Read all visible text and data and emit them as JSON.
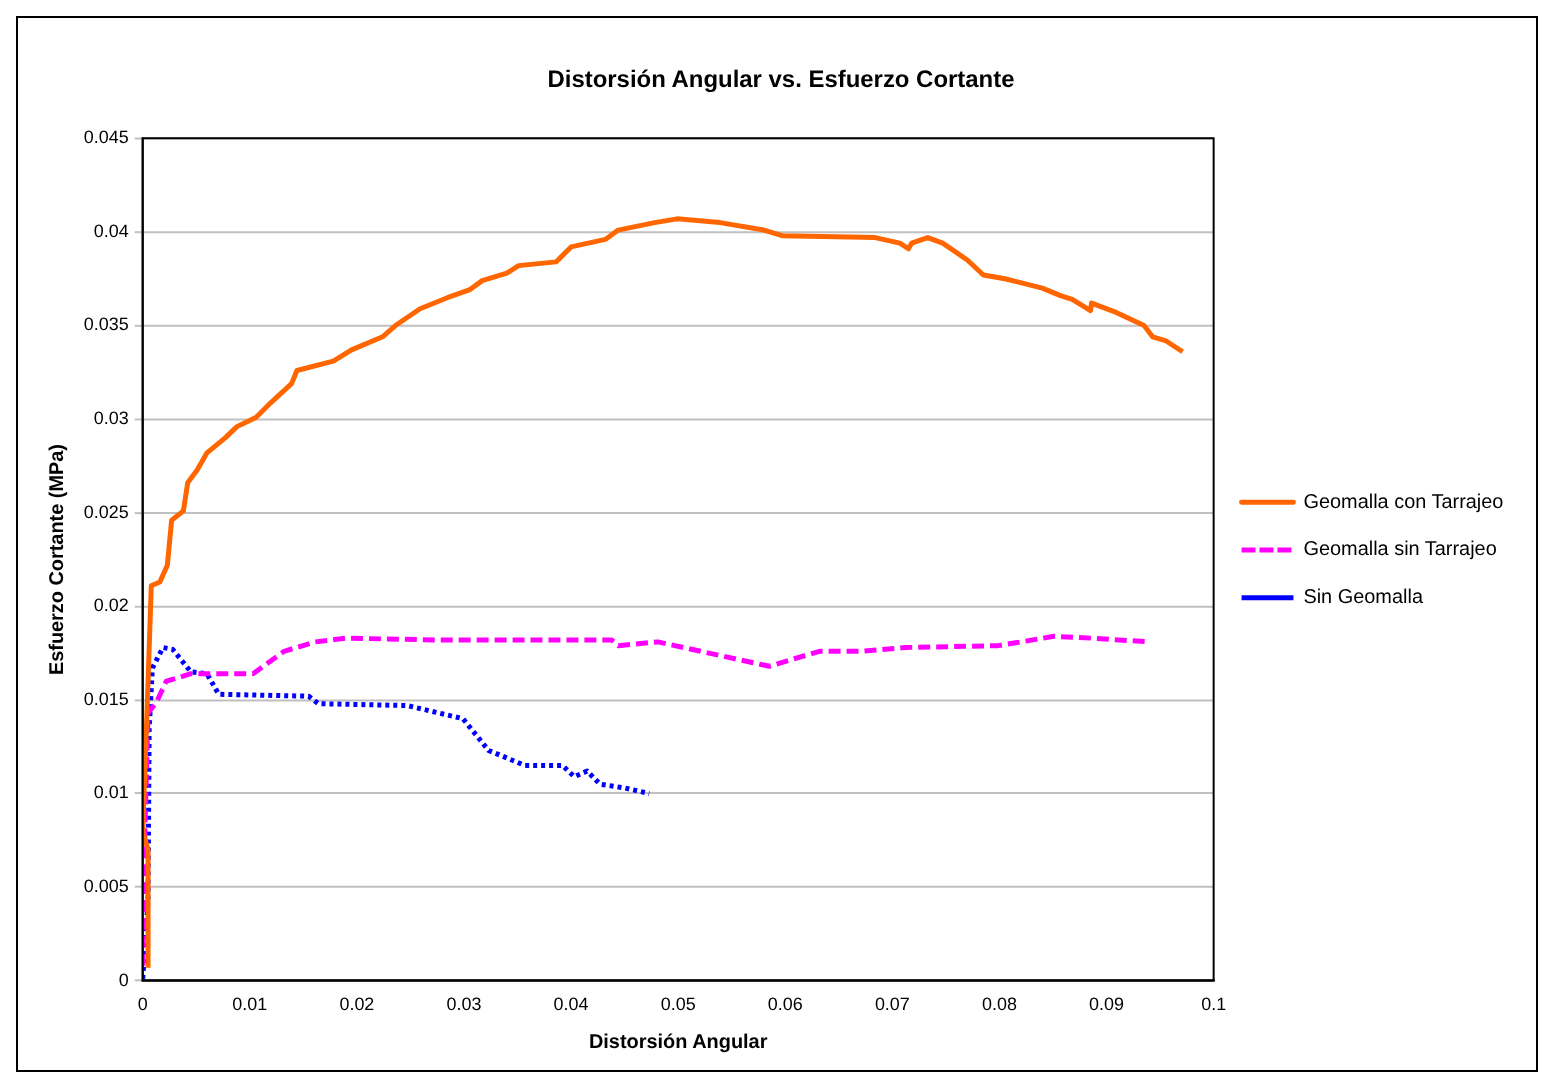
{
  "chart_data": {
    "type": "line",
    "title": "Distorsión Angular vs. Esfuerzo Cortante",
    "xlabel": "Distorsión Angular",
    "ylabel": "Esfuerzo Cortante (MPa)",
    "xlim": [
      0,
      0.1
    ],
    "xticks": [
      0,
      0.01,
      0.02,
      0.03,
      0.04,
      0.05,
      0.06,
      0.07,
      0.08,
      0.09,
      0.1
    ],
    "ylim": [
      0,
      0.045
    ],
    "yticks": [
      0,
      0.005,
      0.01,
      0.015,
      0.02,
      0.025,
      0.03,
      0.035,
      0.04,
      0.045
    ],
    "grid": "y",
    "legend": "right",
    "marker": "none",
    "series": [
      {
        "name": "Geomalla con Tarrajeo",
        "color": "#ff6600",
        "line_style": "solid",
        "x": [
          0.0005,
          0.0005,
          0,
          0.0005,
          0.0008,
          0.0016,
          0.0023,
          0.0027,
          0.0038,
          0.0042,
          0.0051,
          0.006,
          0.0077,
          0.0088,
          0.0106,
          0.012,
          0.0139,
          0.0144,
          0.0178,
          0.0195,
          0.0224,
          0.0236,
          0.0259,
          0.0285,
          0.0305,
          0.0317,
          0.034,
          0.0351,
          0.0386,
          0.04,
          0.0432,
          0.0444,
          0.0478,
          0.0499,
          0.0539,
          0.058,
          0.0597,
          0.0684,
          0.0707,
          0.0715,
          0.0718,
          0.0733,
          0.0747,
          0.077,
          0.0785,
          0.0805,
          0.084,
          0.0857,
          0.0868,
          0.0885,
          0.0886,
          0.0909,
          0.0935,
          0.0943,
          0.0955,
          0.0971
        ],
        "values": [
          0.0007,
          0.007,
          0.008,
          0.016,
          0.0211,
          0.0213,
          0.0222,
          0.0246,
          0.0251,
          0.0266,
          0.0273,
          0.0282,
          0.029,
          0.0296,
          0.0301,
          0.0309,
          0.0319,
          0.0326,
          0.0331,
          0.0337,
          0.0344,
          0.035,
          0.0359,
          0.0365,
          0.0369,
          0.0374,
          0.0378,
          0.0382,
          0.0384,
          0.0392,
          0.0396,
          0.0401,
          0.0405,
          0.0407,
          0.0405,
          0.0401,
          0.0398,
          0.0397,
          0.0394,
          0.0391,
          0.0394,
          0.0397,
          0.0394,
          0.0385,
          0.0377,
          0.0375,
          0.037,
          0.0366,
          0.0364,
          0.0358,
          0.0362,
          0.0357,
          0.035,
          0.0344,
          0.0342,
          0.0336
        ]
      },
      {
        "name": "Geomalla sin Tarrajeo",
        "color": "#ff00ff",
        "line_style": "dashed",
        "x": [
          0,
          0.0002,
          0.0005,
          0.0013,
          0.0022,
          0.0045,
          0.0103,
          0.0132,
          0.0161,
          0.019,
          0.0276,
          0.0438,
          0.0444,
          0.0481,
          0.0585,
          0.0632,
          0.0672,
          0.0712,
          0.0799,
          0.0851,
          0.0886,
          0.0941
        ],
        "values": [
          0.0008,
          0.008,
          0.0143,
          0.0149,
          0.016,
          0.0164,
          0.0164,
          0.0176,
          0.0181,
          0.0183,
          0.0182,
          0.0182,
          0.0179,
          0.0181,
          0.0168,
          0.0176,
          0.0176,
          0.0178,
          0.0179,
          0.0184,
          0.0183,
          0.0181
        ]
      },
      {
        "name": "Sin Geomalla",
        "color": "#0000ff",
        "line_style": "dotted",
        "x": [
          0,
          0.0005,
          0.0006,
          0.0009,
          0.0019,
          0.0028,
          0.0045,
          0.006,
          0.0071,
          0.0155,
          0.0164,
          0.0247,
          0.0299,
          0.0323,
          0.0357,
          0.0392,
          0.0403,
          0.0415,
          0.0427,
          0.045,
          0.0473
        ],
        "values": [
          0.0001,
          0.0043,
          0.0134,
          0.0167,
          0.0178,
          0.0177,
          0.0165,
          0.0164,
          0.0153,
          0.0152,
          0.0148,
          0.0147,
          0.014,
          0.0123,
          0.0115,
          0.0115,
          0.0109,
          0.0112,
          0.0105,
          0.0103,
          0.01
        ]
      }
    ]
  }
}
